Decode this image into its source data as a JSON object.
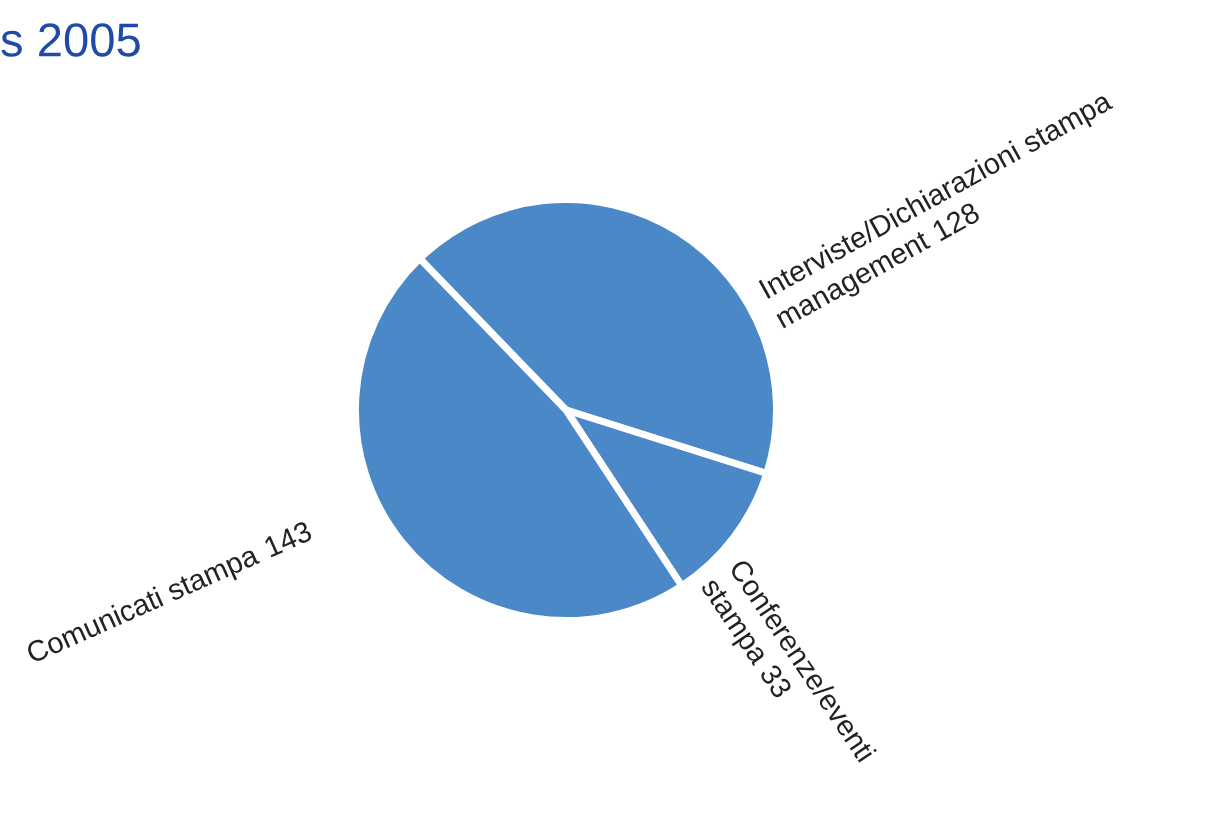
{
  "chart_data": {
    "type": "pie",
    "title": "s 2005",
    "categories": [
      "Interviste/Dichiarazioni stampa\nmanagement",
      "Conferenze/eventi\nstampa",
      "Comunicati stampa"
    ],
    "values": [
      128,
      33,
      143
    ],
    "colors": [
      "#4a88c8",
      "#4a88c8",
      "#4a88c8"
    ],
    "data_labels": true
  }
}
